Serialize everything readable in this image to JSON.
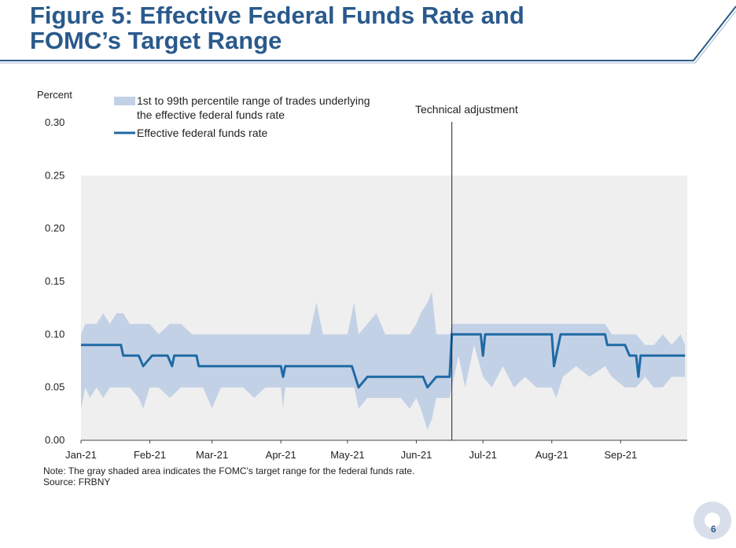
{
  "slide": {
    "title_line1": "Figure 5: Effective Federal Funds Rate and",
    "title_line2": "FOMC’s Target Range",
    "note": "Note: The gray shaded area indicates the FOMC's target range for the federal funds rate.",
    "source": "Source: FRBNY",
    "page_number": "6",
    "colors": {
      "title": "#2a5a8c",
      "accent": "#1f6aa5",
      "band": "#c3d1e6",
      "target_range": "#efefef"
    }
  },
  "chart_data": {
    "type": "line",
    "ylabel": "Percent",
    "ylim": [
      0,
      0.3
    ],
    "yticks": [
      "0.00",
      "0.05",
      "0.10",
      "0.15",
      "0.20",
      "0.25",
      "0.30"
    ],
    "x_tick_labels": [
      "Jan-21",
      "Feb-21",
      "Mar-21",
      "Apr-21",
      "May-21",
      "Jun-21",
      "Jul-21",
      "Aug-21",
      "Sep-21"
    ],
    "x_date_range": [
      "2021-01-01",
      "2021-09-30"
    ],
    "target_range": [
      0,
      0.25
    ],
    "annotation": {
      "text": "Technical adjustment",
      "date": "2021-06-17"
    },
    "legend": [
      {
        "kind": "band",
        "label": "1st to 99th percentile range of trades underlying the effective federal funds rate"
      },
      {
        "kind": "line",
        "label": "Effective federal funds rate"
      }
    ],
    "series": [
      {
        "name": "Effective federal funds rate",
        "points": [
          [
            "2021-01-01",
            0.09
          ],
          [
            "2021-01-19",
            0.09
          ],
          [
            "2021-01-20",
            0.08
          ],
          [
            "2021-01-27",
            0.08
          ],
          [
            "2021-01-29",
            0.07
          ],
          [
            "2021-02-02",
            0.08
          ],
          [
            "2021-02-09",
            0.08
          ],
          [
            "2021-02-11",
            0.07
          ],
          [
            "2021-02-12",
            0.08
          ],
          [
            "2021-02-22",
            0.08
          ],
          [
            "2021-02-23",
            0.07
          ],
          [
            "2021-04-01",
            0.07
          ],
          [
            "2021-04-02",
            0.06
          ],
          [
            "2021-04-03",
            0.07
          ],
          [
            "2021-05-03",
            0.07
          ],
          [
            "2021-05-06",
            0.05
          ],
          [
            "2021-05-10",
            0.06
          ],
          [
            "2021-06-04",
            0.06
          ],
          [
            "2021-06-06",
            0.05
          ],
          [
            "2021-06-10",
            0.06
          ],
          [
            "2021-06-16",
            0.06
          ],
          [
            "2021-06-17",
            0.1
          ],
          [
            "2021-06-30",
            0.1
          ],
          [
            "2021-07-01",
            0.08
          ],
          [
            "2021-07-02",
            0.1
          ],
          [
            "2021-08-01",
            0.1
          ],
          [
            "2021-08-02",
            0.07
          ],
          [
            "2021-08-05",
            0.1
          ],
          [
            "2021-08-25",
            0.1
          ],
          [
            "2021-08-26",
            0.09
          ],
          [
            "2021-09-03",
            0.09
          ],
          [
            "2021-09-05",
            0.08
          ],
          [
            "2021-09-08",
            0.08
          ],
          [
            "2021-09-09",
            0.06
          ],
          [
            "2021-09-10",
            0.08
          ],
          [
            "2021-09-30",
            0.08
          ]
        ]
      },
      {
        "name": "1st to 99th percentile range of trades underlying the effective federal funds rate",
        "kind": "band",
        "points": [
          [
            "2021-01-01",
            0.03,
            0.1
          ],
          [
            "2021-01-03",
            0.05,
            0.11
          ],
          [
            "2021-01-05",
            0.04,
            0.11
          ],
          [
            "2021-01-08",
            0.05,
            0.11
          ],
          [
            "2021-01-11",
            0.04,
            0.12
          ],
          [
            "2021-01-14",
            0.05,
            0.11
          ],
          [
            "2021-01-17",
            0.05,
            0.12
          ],
          [
            "2021-01-20",
            0.05,
            0.12
          ],
          [
            "2021-01-23",
            0.05,
            0.11
          ],
          [
            "2021-01-27",
            0.04,
            0.11
          ],
          [
            "2021-01-29",
            0.03,
            0.11
          ],
          [
            "2021-02-01",
            0.05,
            0.11
          ],
          [
            "2021-02-05",
            0.05,
            0.1
          ],
          [
            "2021-02-10",
            0.04,
            0.11
          ],
          [
            "2021-02-15",
            0.05,
            0.11
          ],
          [
            "2021-02-20",
            0.05,
            0.1
          ],
          [
            "2021-02-25",
            0.05,
            0.1
          ],
          [
            "2021-03-01",
            0.03,
            0.1
          ],
          [
            "2021-03-05",
            0.05,
            0.1
          ],
          [
            "2021-03-15",
            0.05,
            0.1
          ],
          [
            "2021-03-20",
            0.04,
            0.1
          ],
          [
            "2021-03-25",
            0.05,
            0.1
          ],
          [
            "2021-04-01",
            0.05,
            0.1
          ],
          [
            "2021-04-02",
            0.03,
            0.1
          ],
          [
            "2021-04-03",
            0.05,
            0.1
          ],
          [
            "2021-04-14",
            0.05,
            0.1
          ],
          [
            "2021-04-17",
            0.05,
            0.13
          ],
          [
            "2021-04-20",
            0.05,
            0.1
          ],
          [
            "2021-05-01",
            0.05,
            0.1
          ],
          [
            "2021-05-04",
            0.05,
            0.13
          ],
          [
            "2021-05-06",
            0.03,
            0.1
          ],
          [
            "2021-05-10",
            0.04,
            0.11
          ],
          [
            "2021-05-14",
            0.04,
            0.12
          ],
          [
            "2021-05-18",
            0.04,
            0.1
          ],
          [
            "2021-05-25",
            0.04,
            0.1
          ],
          [
            "2021-05-29",
            0.03,
            0.1
          ],
          [
            "2021-06-01",
            0.04,
            0.11
          ],
          [
            "2021-06-03",
            0.03,
            0.12
          ],
          [
            "2021-06-06",
            0.01,
            0.13
          ],
          [
            "2021-06-08",
            0.02,
            0.14
          ],
          [
            "2021-06-10",
            0.04,
            0.1
          ],
          [
            "2021-06-16",
            0.04,
            0.1
          ],
          [
            "2021-06-17",
            0.05,
            0.11
          ],
          [
            "2021-06-20",
            0.08,
            0.11
          ],
          [
            "2021-06-23",
            0.05,
            0.11
          ],
          [
            "2021-06-27",
            0.09,
            0.11
          ],
          [
            "2021-07-01",
            0.06,
            0.11
          ],
          [
            "2021-07-05",
            0.05,
            0.11
          ],
          [
            "2021-07-10",
            0.07,
            0.11
          ],
          [
            "2021-07-15",
            0.05,
            0.11
          ],
          [
            "2021-07-20",
            0.06,
            0.11
          ],
          [
            "2021-07-25",
            0.05,
            0.11
          ],
          [
            "2021-08-01",
            0.05,
            0.11
          ],
          [
            "2021-08-03",
            0.04,
            0.11
          ],
          [
            "2021-08-06",
            0.06,
            0.11
          ],
          [
            "2021-08-12",
            0.07,
            0.11
          ],
          [
            "2021-08-18",
            0.06,
            0.11
          ],
          [
            "2021-08-25",
            0.07,
            0.11
          ],
          [
            "2021-08-28",
            0.06,
            0.1
          ],
          [
            "2021-09-03",
            0.05,
            0.1
          ],
          [
            "2021-09-08",
            0.05,
            0.1
          ],
          [
            "2021-09-12",
            0.06,
            0.09
          ],
          [
            "2021-09-16",
            0.05,
            0.09
          ],
          [
            "2021-09-20",
            0.05,
            0.1
          ],
          [
            "2021-09-24",
            0.06,
            0.09
          ],
          [
            "2021-09-28",
            0.06,
            0.1
          ],
          [
            "2021-09-30",
            0.06,
            0.09
          ]
        ]
      }
    ]
  }
}
